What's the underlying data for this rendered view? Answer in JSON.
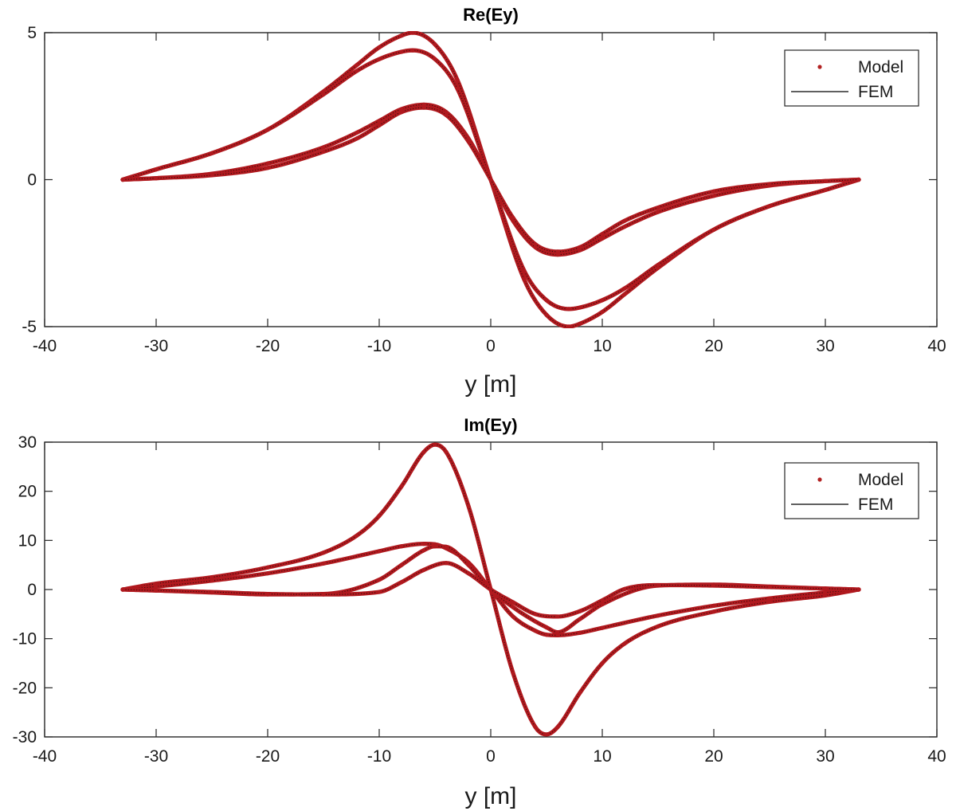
{
  "chart_data": [
    {
      "type": "line",
      "title": "Re(Ey)",
      "xlabel": "y [m]",
      "ylabel": "",
      "xlim": [
        -40,
        40
      ],
      "ylim": [
        -5,
        5
      ],
      "xticks": [
        -40,
        -30,
        -20,
        -10,
        0,
        10,
        20,
        30,
        40
      ],
      "yticks": [
        -5,
        0,
        5
      ],
      "xtick_labels": [
        "-40",
        "-30",
        "-20",
        "-10",
        "0",
        "10",
        "20",
        "30",
        "40"
      ],
      "ytick_labels": [
        "-5",
        "0",
        "5"
      ],
      "grid": false,
      "legend": {
        "position": "top-right",
        "entries": [
          {
            "label": "Model",
            "style": "marker",
            "color": "#b22222"
          },
          {
            "label": "FEM",
            "style": "line",
            "color": "#000000"
          }
        ]
      },
      "series": [
        {
          "x": [
            -33,
            -30,
            -25,
            -20,
            -15,
            -12,
            -10,
            -8,
            -7,
            -5,
            -3,
            0,
            3,
            5,
            7,
            8,
            10,
            12,
            15,
            20,
            25,
            30,
            33
          ],
          "values": [
            0,
            0.35,
            0.9,
            1.7,
            3.0,
            3.9,
            4.5,
            4.9,
            5.0,
            4.6,
            3.4,
            0,
            -3.4,
            -4.6,
            -5.0,
            -4.9,
            -4.5,
            -3.9,
            -3.0,
            -1.7,
            -0.9,
            -0.35,
            0
          ]
        },
        {
          "x": [
            -33,
            -30,
            -25,
            -20,
            -15,
            -12,
            -10,
            -8,
            -7,
            -5,
            -3,
            0,
            3,
            5,
            7,
            8,
            10,
            12,
            15,
            20,
            25,
            30,
            33
          ],
          "values": [
            0,
            0.35,
            0.9,
            1.7,
            2.9,
            3.7,
            4.1,
            4.35,
            4.4,
            4.1,
            3.1,
            0,
            -3.1,
            -4.1,
            -4.4,
            -4.35,
            -4.1,
            -3.7,
            -2.9,
            -1.7,
            -0.9,
            -0.35,
            0
          ]
        },
        {
          "x": [
            -33,
            -30,
            -25,
            -20,
            -15,
            -12,
            -10,
            -8,
            -6,
            -4,
            -2,
            0,
            2,
            4,
            6,
            8,
            10,
            12,
            15,
            20,
            25,
            30,
            33
          ],
          "values": [
            0,
            0.05,
            0.2,
            0.55,
            1.1,
            1.6,
            2.0,
            2.4,
            2.55,
            2.3,
            1.4,
            0,
            -1.4,
            -2.3,
            -2.55,
            -2.4,
            -2.0,
            -1.6,
            -1.1,
            -0.55,
            -0.2,
            -0.05,
            0
          ]
        },
        {
          "x": [
            -33,
            -30,
            -25,
            -20,
            -15,
            -12,
            -10,
            -8,
            -6,
            -4,
            -2,
            0,
            2,
            4,
            6,
            8,
            10,
            12,
            15,
            20,
            25,
            30,
            33
          ],
          "values": [
            0,
            0.05,
            0.15,
            0.4,
            0.95,
            1.4,
            1.85,
            2.3,
            2.45,
            2.2,
            1.3,
            0,
            -1.3,
            -2.2,
            -2.45,
            -2.3,
            -1.85,
            -1.4,
            -0.95,
            -0.4,
            -0.15,
            -0.05,
            0
          ]
        }
      ]
    },
    {
      "type": "line",
      "title": "Im(Ey)",
      "xlabel": "y [m]",
      "ylabel": "",
      "xlim": [
        -40,
        40
      ],
      "ylim": [
        -30,
        30
      ],
      "xticks": [
        -40,
        -30,
        -20,
        -10,
        0,
        10,
        20,
        30,
        40
      ],
      "yticks": [
        -30,
        -20,
        -10,
        0,
        10,
        20,
        30
      ],
      "xtick_labels": [
        "-40",
        "-30",
        "-20",
        "-10",
        "0",
        "10",
        "20",
        "30",
        "40"
      ],
      "ytick_labels": [
        "-30",
        "-20",
        "-10",
        "0",
        "10",
        "20",
        "30"
      ],
      "grid": false,
      "legend": {
        "position": "top-right",
        "entries": [
          {
            "label": "Model",
            "style": "marker",
            "color": "#b22222"
          },
          {
            "label": "FEM",
            "style": "line",
            "color": "#000000"
          }
        ]
      },
      "series": [
        {
          "x": [
            -33,
            -30,
            -25,
            -20,
            -15,
            -12,
            -10,
            -8,
            -6,
            -5,
            -4,
            -2,
            0,
            2,
            4,
            5,
            6,
            8,
            10,
            12,
            15,
            20,
            25,
            30,
            33
          ],
          "values": [
            0,
            1.2,
            2.5,
            4.5,
            7.5,
            11,
            15,
            21,
            28,
            29.5,
            28,
            17,
            0,
            -17,
            -28,
            -29.5,
            -28,
            -21,
            -15,
            -11,
            -7.5,
            -4.5,
            -2.5,
            -1.2,
            0
          ]
        },
        {
          "x": [
            -33,
            -30,
            -25,
            -20,
            -15,
            -10,
            -8,
            -6,
            -5,
            -4,
            -2,
            0,
            2,
            4,
            5,
            6,
            8,
            10,
            15,
            20,
            25,
            30,
            33
          ],
          "values": [
            0,
            0.6,
            1.8,
            3.3,
            5.3,
            7.8,
            8.8,
            9.3,
            9.2,
            8.4,
            5.5,
            0,
            -5.5,
            -8.4,
            -9.2,
            -9.3,
            -8.8,
            -7.8,
            -5.3,
            -3.3,
            -1.8,
            -0.6,
            0
          ]
        },
        {
          "x": [
            -33,
            -30,
            -25,
            -20,
            -15,
            -10,
            -8,
            -6,
            -5,
            -4,
            -2,
            0,
            2,
            4,
            5,
            6,
            8,
            10,
            15,
            20,
            25,
            30,
            33
          ],
          "values": [
            0,
            -0.2,
            -0.6,
            -1.0,
            -0.9,
            2.0,
            5.0,
            8.0,
            8.8,
            8.7,
            5.0,
            0,
            -3.6,
            -6.5,
            -7.7,
            -8.7,
            -6.0,
            -3.0,
            0.8,
            1.0,
            0.6,
            0.2,
            0
          ]
        },
        {
          "x": [
            -33,
            -30,
            -25,
            -20,
            -15,
            -10,
            -8,
            -6,
            -4,
            -2,
            0,
            2,
            4,
            6,
            8,
            10,
            12,
            15,
            20,
            25,
            30,
            33
          ],
          "values": [
            0,
            -0.2,
            -0.5,
            -0.9,
            -1.0,
            -0.5,
            1.5,
            4.0,
            5.4,
            3.3,
            0,
            -2.6,
            -5.0,
            -5.5,
            -4.4,
            -2.2,
            0.1,
            0.9,
            0.8,
            0.5,
            0.2,
            0
          ]
        }
      ]
    }
  ]
}
